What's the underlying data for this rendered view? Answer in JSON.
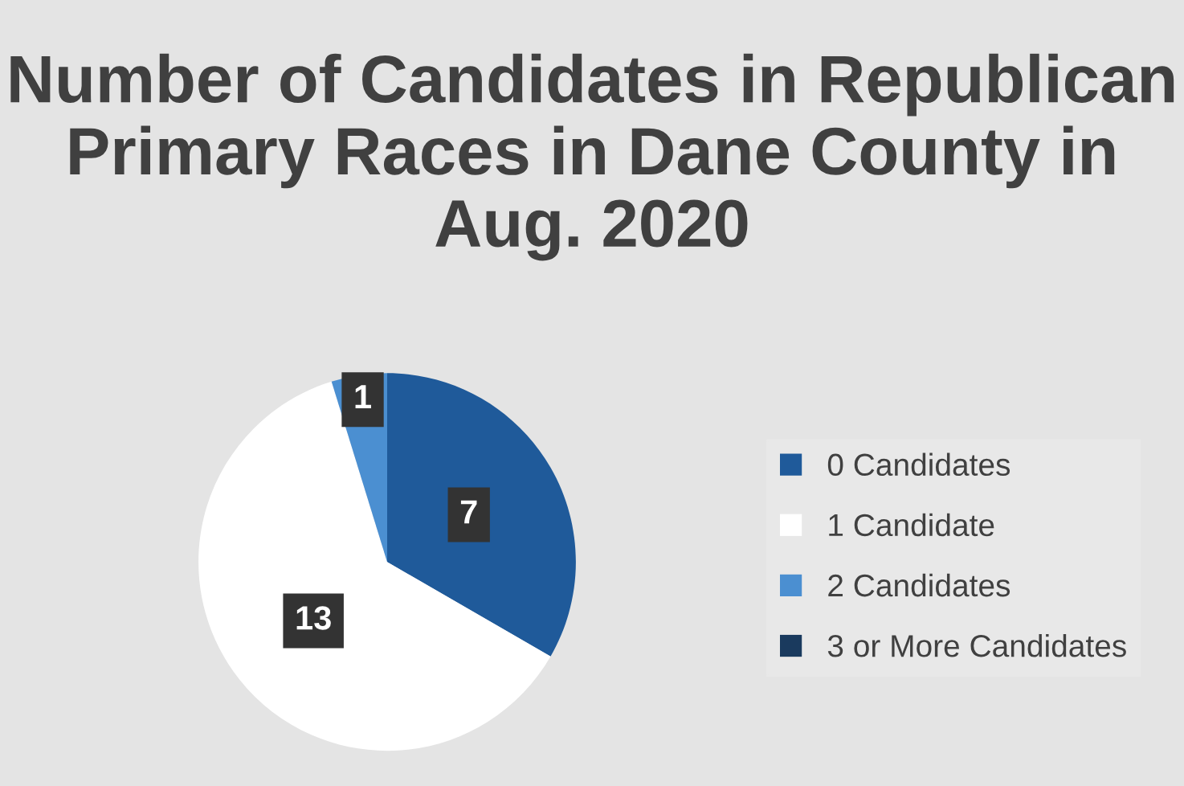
{
  "chart_data": {
    "type": "pie",
    "title": "Number of Candidates in Republican Primary Races in Dane County in Aug. 2020",
    "categories": [
      "0 Candidates",
      "1 Candidate",
      "2 Candidates",
      "3 or More Candidates"
    ],
    "values": [
      7,
      13,
      1,
      0
    ],
    "colors": [
      "#1f5a9a",
      "#ffffff",
      "#4b8fd1",
      "#1a3a5e"
    ],
    "value_labels": [
      "7",
      "13",
      "1",
      null
    ],
    "legend": "right"
  }
}
